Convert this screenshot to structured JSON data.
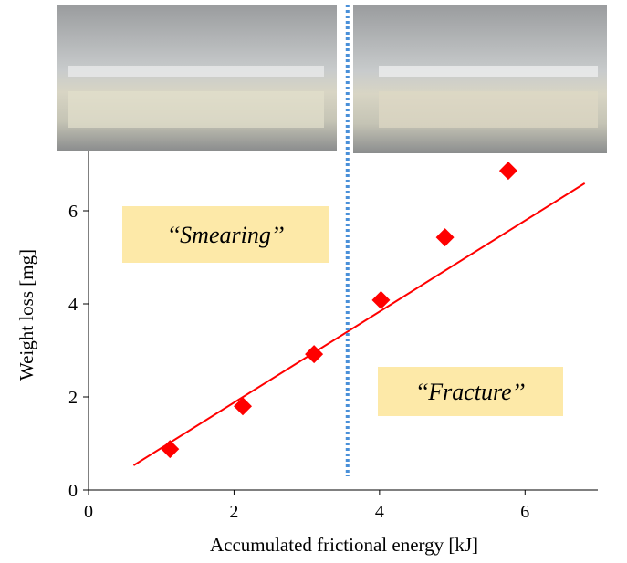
{
  "chart_data": {
    "type": "scatter",
    "x_label": "Accumulated frictional energy [kJ]",
    "y_label": "Weight loss [mg]",
    "xlim": [
      0,
      7
    ],
    "ylim": [
      0,
      8
    ],
    "xticks": [
      0,
      2,
      4,
      6
    ],
    "yticks": [
      0,
      2,
      4,
      6
    ],
    "divider_x": 3.56,
    "divider_color": "#4a90d9",
    "annotations": [
      "‘‘Smearing’’",
      "‘‘Fracture’’"
    ],
    "series": [
      {
        "type": "scatter",
        "color": "#ff0000",
        "x": [
          1.12,
          2.12,
          3.1,
          4.02,
          4.9,
          5.77
        ],
        "values": [
          0.88,
          1.8,
          2.92,
          4.08,
          5.43,
          6.86
        ]
      },
      {
        "type": "line",
        "color": "#ff0000",
        "x": [
          0.62,
          6.82
        ],
        "values": [
          0.53,
          6.59
        ]
      }
    ]
  }
}
